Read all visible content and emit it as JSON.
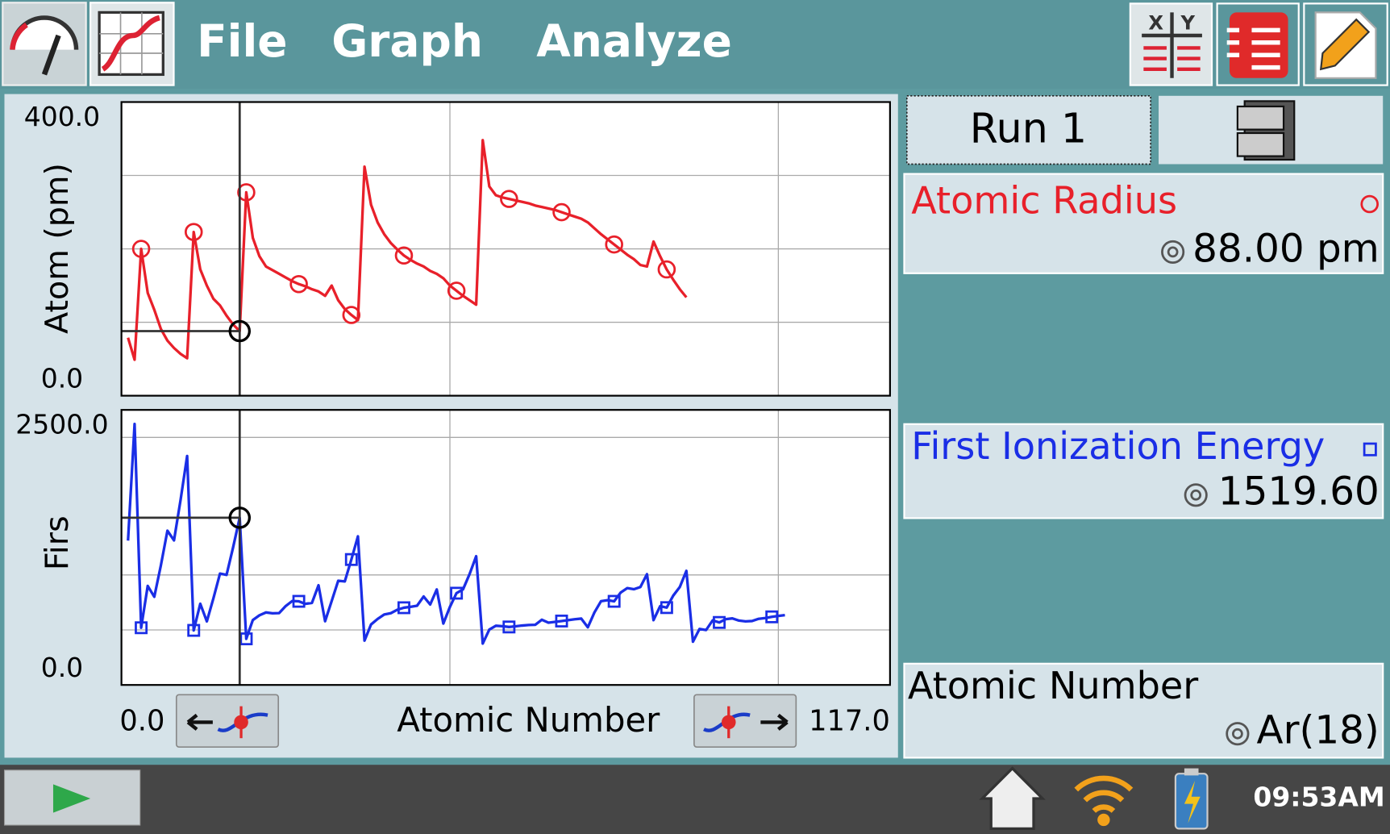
{
  "menu": {
    "items": [
      "File",
      "Graph",
      "Analyze"
    ]
  },
  "chart_data": [
    {
      "type": "line",
      "y_label": "Atom (pm)",
      "xlim": [
        0,
        117
      ],
      "xgrid": [
        50,
        100
      ],
      "ylim": [
        0,
        400
      ],
      "yticks": [
        {
          "value": 0,
          "label": "0.0"
        },
        {
          "value": 400,
          "label": "400.0"
        }
      ],
      "ygrid": [
        100,
        200,
        300
      ],
      "cursor_x": 18,
      "x": [
        1,
        2,
        3,
        4,
        5,
        6,
        7,
        8,
        9,
        10,
        11,
        12,
        13,
        14,
        15,
        16,
        17,
        18,
        19,
        20,
        21,
        22,
        23,
        24,
        25,
        26,
        27,
        28,
        29,
        30,
        31,
        32,
        33,
        34,
        35,
        36,
        37,
        38,
        39,
        40,
        41,
        42,
        43,
        44,
        45,
        46,
        47,
        48,
        49,
        50,
        51,
        52,
        53,
        54,
        55,
        56,
        57,
        58,
        59,
        60,
        61,
        62,
        63,
        64,
        65,
        66,
        67,
        68,
        69,
        70,
        71,
        72,
        73,
        74,
        75,
        76,
        77,
        78,
        79,
        80,
        81,
        82,
        83,
        84,
        85,
        86
      ],
      "series": [
        {
          "name": "Atomic Radius",
          "color": "#e8202a",
          "marker": "circle",
          "values": [
            79,
            49,
            200,
            140,
            117,
            91,
            75,
            65,
            57,
            51,
            223,
            172,
            150,
            132,
            123,
            109,
            97,
            88,
            277,
            215,
            190,
            176,
            171,
            166,
            161,
            156,
            152,
            149,
            145,
            142,
            136,
            150,
            130,
            118,
            110,
            103,
            312,
            260,
            236,
            220,
            208,
            199,
            191,
            185,
            180,
            176,
            170,
            166,
            160,
            150,
            143,
            136,
            130,
            124,
            348,
            285,
            273,
            270,
            268,
            266,
            264,
            262,
            259,
            257,
            255,
            253,
            250,
            247,
            244,
            241,
            236,
            228,
            220,
            213,
            206,
            199,
            192,
            186,
            178,
            176,
            210,
            190,
            172,
            158,
            145,
            134
          ]
        }
      ]
    },
    {
      "type": "line",
      "y_label": "Firs",
      "x_label": "Atomic Number",
      "xlim": [
        0,
        117
      ],
      "xticks": [
        {
          "value": 0,
          "label": "0.0"
        },
        {
          "value": 117,
          "label": "117.0"
        }
      ],
      "xgrid": [
        50,
        100
      ],
      "ylim": [
        0,
        2500
      ],
      "yticks": [
        {
          "value": 0,
          "label": "0.0"
        },
        {
          "value": 2500,
          "label": "2500.0"
        }
      ],
      "ygrid": [
        500,
        1000,
        2250
      ],
      "cursor_x": 18,
      "x": [
        1,
        2,
        3,
        4,
        5,
        6,
        7,
        8,
        9,
        10,
        11,
        12,
        13,
        14,
        15,
        16,
        17,
        18,
        19,
        20,
        21,
        22,
        23,
        24,
        25,
        26,
        27,
        28,
        29,
        30,
        31,
        32,
        33,
        34,
        35,
        36,
        37,
        38,
        39,
        40,
        41,
        42,
        43,
        44,
        45,
        46,
        47,
        48,
        49,
        50,
        51,
        52,
        53,
        54,
        55,
        56,
        57,
        58,
        59,
        60,
        61,
        62,
        63,
        64,
        65,
        66,
        67,
        68,
        69,
        70,
        71,
        72,
        73,
        74,
        75,
        76,
        77,
        78,
        79,
        80,
        81,
        82,
        83,
        84,
        85,
        86,
        87,
        88,
        89,
        90,
        91,
        92,
        93,
        94,
        95,
        96,
        97,
        98,
        99,
        100,
        101
      ],
      "series": [
        {
          "name": "First Ionization Energy",
          "color": "#1a2ee6",
          "marker": "square",
          "values": [
            1312,
            2372,
            520,
            900,
            801,
            1086,
            1402,
            1314,
            1681,
            2081,
            496,
            738,
            578,
            787,
            1012,
            1000,
            1251,
            1520,
            419,
            590,
            633,
            659,
            651,
            653,
            717,
            763,
            760,
            737,
            746,
            906,
            579,
            762,
            947,
            941,
            1140,
            1351,
            403,
            550,
            600,
            640,
            652,
            684,
            702,
            710,
            720,
            804,
            731,
            868,
            558,
            709,
            834,
            869,
            1008,
            1170,
            376,
            503,
            538,
            534,
            527,
            533,
            540,
            545,
            547,
            593,
            566,
            573,
            581,
            589,
            597,
            603,
            524,
            659,
            761,
            770,
            760,
            840,
            880,
            870,
            890,
            1007,
            589,
            716,
            703,
            812,
            890,
            1037,
            393,
            509,
            499,
            587,
            568,
            598,
            605,
            585,
            578,
            581,
            601,
            608,
            619,
            627,
            635
          ]
        }
      ]
    }
  ],
  "run_button": "Run 1",
  "meters": [
    {
      "reading": "88.00 pm"
    },
    {
      "reading": "1519.60"
    },
    {
      "reading": "Ar(18)"
    }
  ],
  "status": {
    "time": "09:53AM"
  }
}
